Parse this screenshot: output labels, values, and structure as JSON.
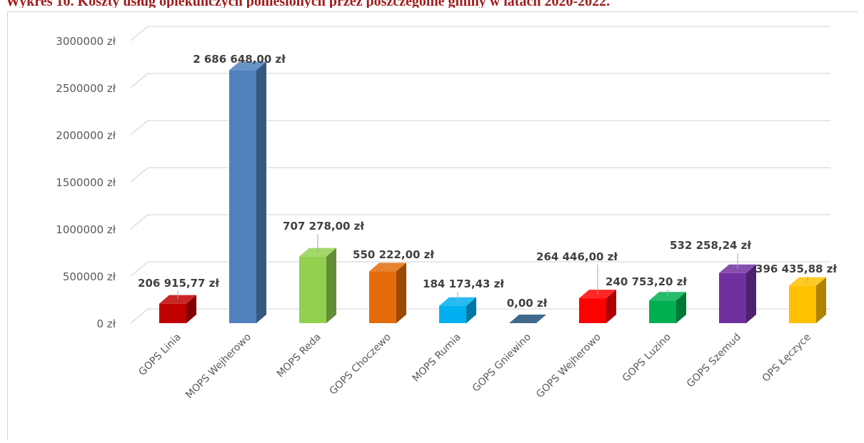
{
  "caption": "Wykres 10. Koszty usług opiekuńczych poniesionych przez poszczególne gminy w latach 2020-2022.",
  "colors": {
    "caption": "#a01c1c",
    "grid": "#d9d9d9",
    "text": "#404040"
  },
  "chart_data": {
    "type": "bar",
    "style": "3d-column",
    "categories": [
      "GOPS Linia",
      "MOPS Wejherowo",
      "MOPS Reda",
      "GOPS Choczewo",
      "MOPS Rumia",
      "GOPS Gniewino",
      "GOPS Wejherowo",
      "GOPS Luzino",
      "GOPS Szemud",
      "OPS Łęczyce"
    ],
    "values": [
      206915.77,
      2686648.0,
      707278.0,
      550222.0,
      184173.43,
      0.0,
      264446.0,
      240753.2,
      532258.24,
      396435.88
    ],
    "data_labels": [
      "206 915,77 zł",
      "2 686 648,00 zł",
      "707 278,00 zł",
      "550 222,00 zł",
      "184 173,43 zł",
      "0,00 zł",
      "264 446,00 zł",
      "240 753,20 zł",
      "532 258,24 zł",
      "396 435,88 zł"
    ],
    "bar_colors": [
      "#c00000",
      "#4f81bd",
      "#92d050",
      "#e36c09",
      "#00b0f0",
      "#1f4e79",
      "#ff0000",
      "#00b050",
      "#7030a0",
      "#ffc000"
    ],
    "y_ticks": [
      0,
      500000,
      1000000,
      1500000,
      2000000,
      2500000,
      3000000
    ],
    "y_tick_labels": [
      "0 zł",
      "500000 zł",
      "1000000 zł",
      "1500000 zł",
      "2000000 zł",
      "2500000 zł",
      "3000000 zł"
    ],
    "ylim": [
      0,
      3000000
    ],
    "grid": true,
    "legend": "none",
    "title": "",
    "xlabel": "",
    "ylabel": ""
  }
}
